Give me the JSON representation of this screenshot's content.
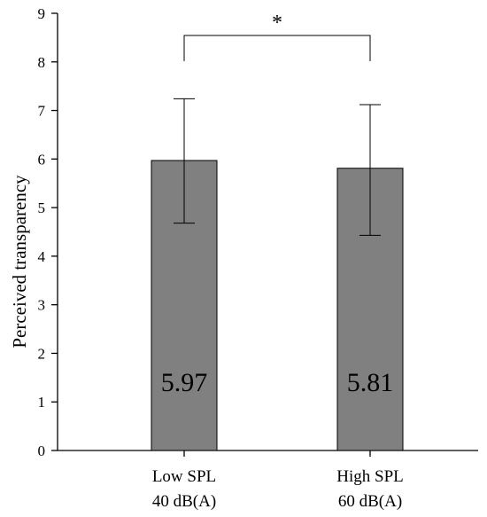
{
  "chart_data": {
    "type": "bar",
    "categories": [
      [
        "Low SPL",
        "40 dB(A)"
      ],
      [
        "High SPL",
        "60 dB(A)"
      ]
    ],
    "values": [
      5.97,
      5.81
    ],
    "value_labels": [
      "5.97",
      "5.81"
    ],
    "error_bars": [
      {
        "low": 4.68,
        "high": 7.24
      },
      {
        "low": 4.43,
        "high": 7.12
      }
    ],
    "title": "",
    "xlabel": "",
    "ylabel": "Perceived transparency",
    "ylim": [
      0,
      9
    ],
    "yticks": [
      0,
      1,
      2,
      3,
      4,
      5,
      6,
      7,
      8,
      9
    ],
    "grid": false,
    "significance": {
      "between": [
        0,
        1
      ],
      "label": "*"
    },
    "colors": {
      "bar": "#808080",
      "bar_edge": "#000000",
      "axis": "#000000"
    }
  }
}
